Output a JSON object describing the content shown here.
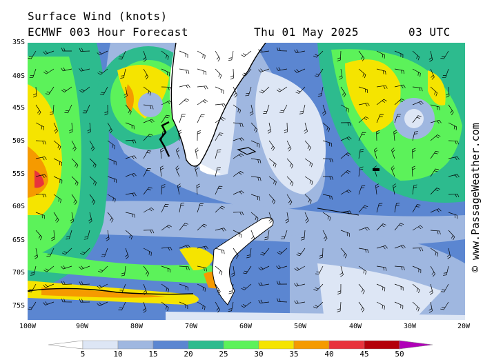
{
  "header": {
    "title": "Surface Wind (knots)",
    "model": "ECMWF 003 Hour Forecast",
    "date": "Thu 01 May 2025",
    "time": "03 UTC"
  },
  "axes": {
    "lat_labels": [
      "35S",
      "40S",
      "45S",
      "50S",
      "55S",
      "60S",
      "65S",
      "70S",
      "75S"
    ],
    "lon_labels": [
      "100W",
      "90W",
      "80W",
      "70W",
      "60W",
      "50W",
      "40W",
      "30W",
      "20W"
    ]
  },
  "credit": "© www.PassageWeather.com",
  "legend": {
    "values": [
      "5",
      "10",
      "15",
      "20",
      "25",
      "30",
      "35",
      "40",
      "45",
      "50"
    ],
    "colors": [
      "#ffffff",
      "#dde6f5",
      "#9fb7e0",
      "#5b86d1",
      "#2dbb8e",
      "#5cf25a",
      "#f5e400",
      "#f59a00",
      "#e8323c",
      "#b4000a",
      "#b000b8"
    ]
  }
}
